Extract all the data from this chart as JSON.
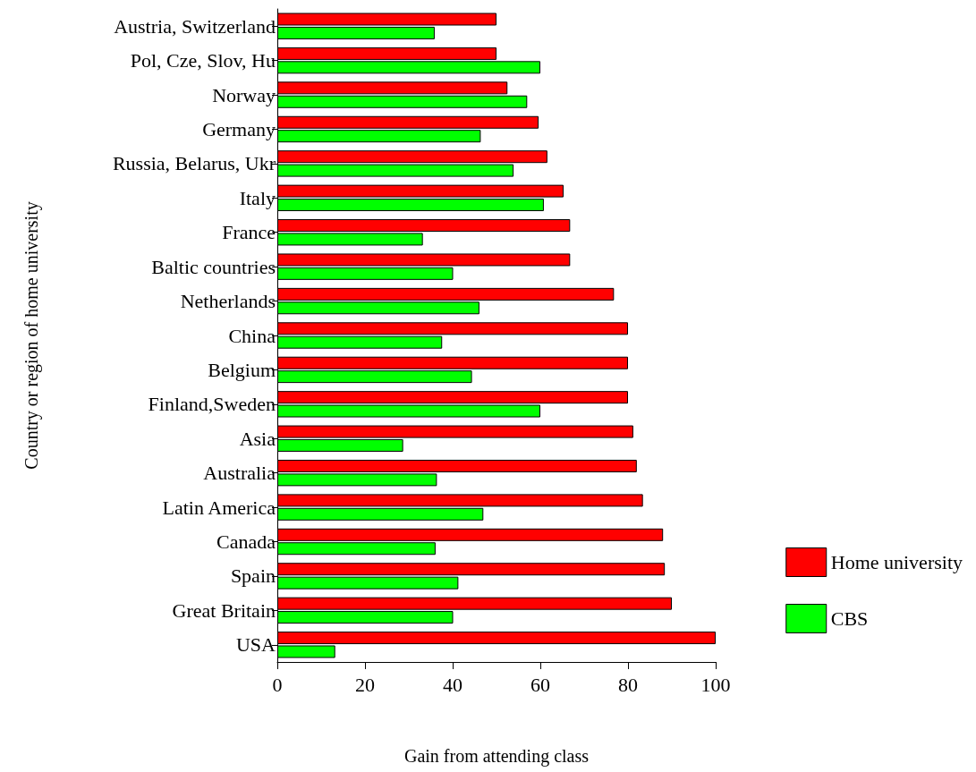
{
  "chart_data": {
    "type": "bar",
    "orientation": "horizontal",
    "xlabel": "Gain from attending class",
    "ylabel": "Country or region of home university",
    "categories": [
      "Austria, Switzerland",
      "Pol, Cze, Slov, Hu",
      "Norway",
      "Germany",
      "Russia, Belarus, Ukr",
      "Italy",
      "France",
      "Baltic countries",
      "Netherlands",
      "China",
      "Belgium",
      "Finland,Sweden",
      "Asia",
      "Australia",
      "Latin America",
      "Canada",
      "Spain",
      "Great Britain",
      "USA"
    ],
    "series": [
      {
        "name": "Home university",
        "color": "#ff0000",
        "values": [
          50,
          50,
          52.5,
          59.6,
          61.6,
          65.3,
          66.8,
          66.8,
          76.8,
          80,
          80,
          80,
          81.2,
          82,
          83.4,
          88,
          88.4,
          90,
          100
        ]
      },
      {
        "name": "CBS",
        "color": "#00ff00",
        "values": [
          35.9,
          60,
          57,
          46.4,
          53.9,
          60.8,
          33.2,
          40.1,
          46.1,
          37.6,
          44.4,
          60,
          28.7,
          36.4,
          47,
          36.1,
          41.3,
          40.1,
          13.2
        ]
      }
    ],
    "xlim": [
      0,
      100
    ],
    "xticks": [
      0,
      20,
      40,
      60,
      80,
      100
    ],
    "grid": false,
    "legend": "bottom right"
  }
}
